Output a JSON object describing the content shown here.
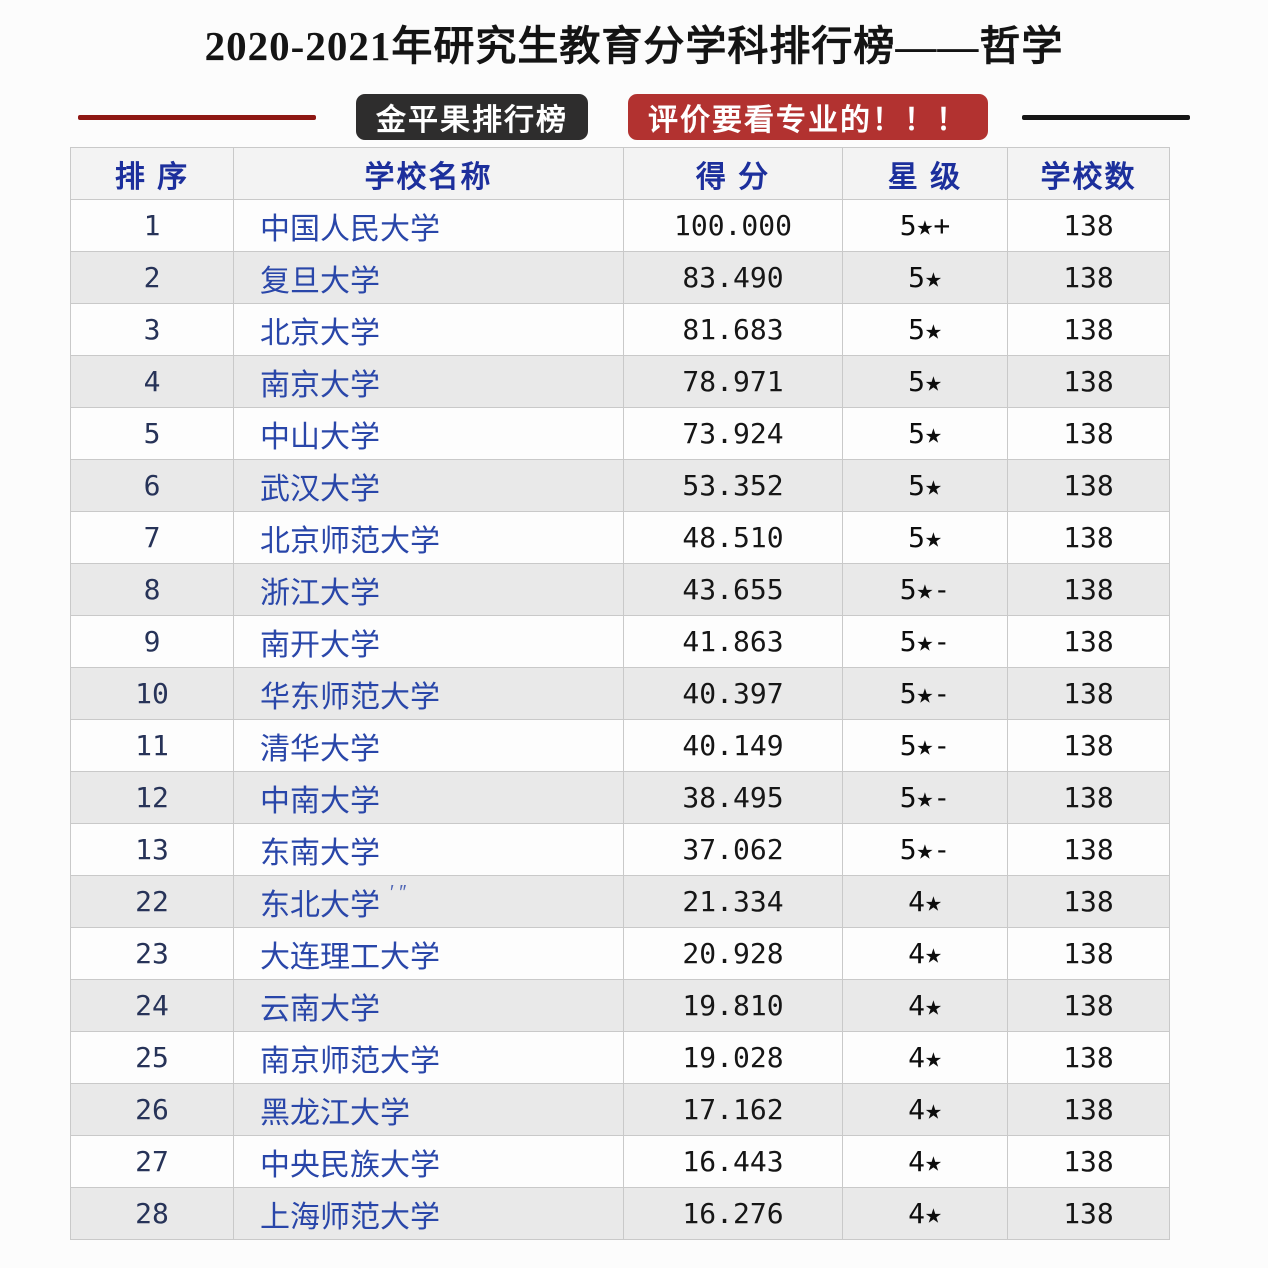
{
  "title": "2020-2021年研究生教育分学科排行榜——哲学",
  "badges": {
    "brand": "金平果排行榜",
    "slogan": "评价要看专业的！！！"
  },
  "colors": {
    "divider_left": "#8e1713",
    "divider_right": "#161616",
    "badge_dark_bg": "#2e2d2d",
    "badge_red_bg": "#b23230",
    "header_text": "#1c2f9c",
    "school_name_text": "#2946a9",
    "rank_text": "#273358",
    "row_alt_bg": "#e9e9e9",
    "border": "#c9c9c9"
  },
  "table": {
    "headers": [
      "排 序",
      "学校名称",
      "得 分",
      "星 级",
      "学校数"
    ],
    "rows": [
      {
        "rank": "1",
        "name": "中国人民大学",
        "artifact": "",
        "score": "100.000",
        "stars": "5★+",
        "count": "138"
      },
      {
        "rank": "2",
        "name": "复旦大学",
        "artifact": "",
        "score": "83.490",
        "stars": "5★",
        "count": "138"
      },
      {
        "rank": "3",
        "name": "北京大学",
        "artifact": "",
        "score": "81.683",
        "stars": "5★",
        "count": "138"
      },
      {
        "rank": "4",
        "name": "南京大学",
        "artifact": "",
        "score": "78.971",
        "stars": "5★",
        "count": "138"
      },
      {
        "rank": "5",
        "name": "中山大学",
        "artifact": "",
        "score": "73.924",
        "stars": "5★",
        "count": "138"
      },
      {
        "rank": "6",
        "name": "武汉大学",
        "artifact": "",
        "score": "53.352",
        "stars": "5★",
        "count": "138"
      },
      {
        "rank": "7",
        "name": "北京师范大学",
        "artifact": "",
        "score": "48.510",
        "stars": "5★",
        "count": "138"
      },
      {
        "rank": "8",
        "name": "浙江大学",
        "artifact": "",
        "score": "43.655",
        "stars": "5★-",
        "count": "138"
      },
      {
        "rank": "9",
        "name": "南开大学",
        "artifact": "",
        "score": "41.863",
        "stars": "5★-",
        "count": "138"
      },
      {
        "rank": "10",
        "name": "华东师范大学",
        "artifact": "",
        "score": "40.397",
        "stars": "5★-",
        "count": "138"
      },
      {
        "rank": "11",
        "name": "清华大学",
        "artifact": "",
        "score": "40.149",
        "stars": "5★-",
        "count": "138"
      },
      {
        "rank": "12",
        "name": "中南大学",
        "artifact": "",
        "score": "38.495",
        "stars": "5★-",
        "count": "138"
      },
      {
        "rank": "13",
        "name": "东南大学",
        "artifact": "",
        "score": "37.062",
        "stars": "5★-",
        "count": "138"
      },
      {
        "rank": "22",
        "name": "东北大学",
        "artifact": "′ ″",
        "score": "21.334",
        "stars": "4★",
        "count": "138"
      },
      {
        "rank": "23",
        "name": "大连理工大学",
        "artifact": "",
        "score": "20.928",
        "stars": "4★",
        "count": "138"
      },
      {
        "rank": "24",
        "name": "云南大学",
        "artifact": "",
        "score": "19.810",
        "stars": "4★",
        "count": "138"
      },
      {
        "rank": "25",
        "name": "南京师范大学",
        "artifact": "",
        "score": "19.028",
        "stars": "4★",
        "count": "138"
      },
      {
        "rank": "26",
        "name": "黑龙江大学",
        "artifact": "",
        "score": "17.162",
        "stars": "4★",
        "count": "138"
      },
      {
        "rank": "27",
        "name": "中央民族大学",
        "artifact": "",
        "score": "16.443",
        "stars": "4★",
        "count": "138"
      },
      {
        "rank": "28",
        "name": "上海师范大学",
        "artifact": "",
        "score": "16.276",
        "stars": "4★",
        "count": "138"
      }
    ]
  }
}
